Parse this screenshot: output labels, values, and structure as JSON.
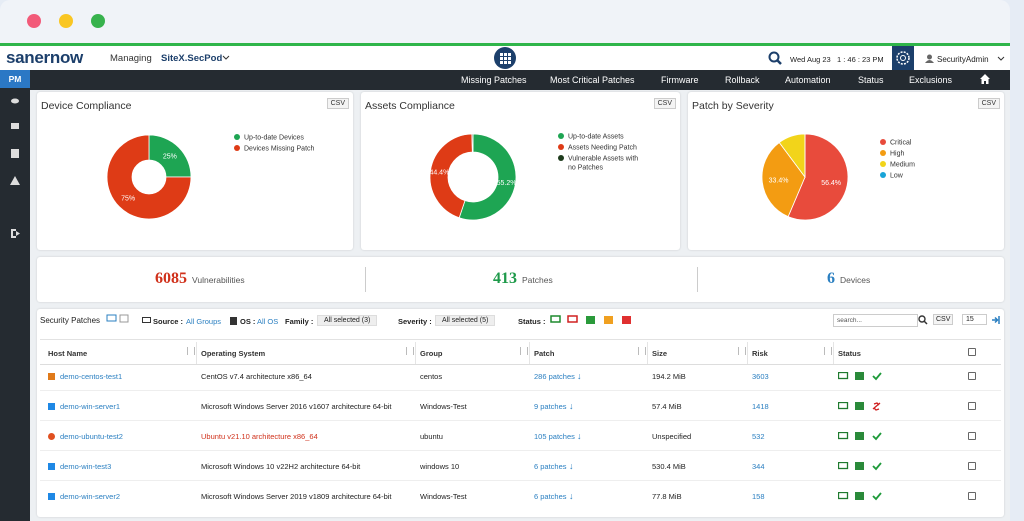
{
  "header": {
    "logo": "sanernow",
    "managing": "Managing",
    "site": "SiteX.SecPod",
    "datetime": "Wed Aug 23   1 : 46 : 23 PM",
    "user": "SecurityAdmin"
  },
  "sidebar": {
    "module": "PM"
  },
  "nav": [
    "Missing Patches",
    "Most Critical Patches",
    "Firmware",
    "Rollback",
    "Automation",
    "Status",
    "Exclusions"
  ],
  "csv_button": "CSV",
  "chart_data": [
    {
      "type": "pie",
      "donut": true,
      "title": "Device Compliance",
      "categories": [
        "Up-to-date Devices",
        "Devices Missing Patch"
      ],
      "values": [
        25,
        75
      ],
      "value_labels": [
        "25%",
        "75%"
      ],
      "colors": [
        "#1ea553",
        "#de3b16"
      ]
    },
    {
      "type": "pie",
      "donut": true,
      "title": "Assets Compliance",
      "categories": [
        "Up-to-date Assets",
        "Assets Needing Patch",
        "Vulnerable Assets with no Patches"
      ],
      "values": [
        55.2,
        44.4,
        0.4
      ],
      "value_labels": [
        "55.2%",
        "44.4%",
        null
      ],
      "colors": [
        "#1ea553",
        "#de3b16",
        "#1d3b1c"
      ]
    },
    {
      "type": "pie",
      "donut": false,
      "title": "Patch by Severity",
      "categories": [
        "Critical",
        "High",
        "Medium",
        "Low"
      ],
      "values": [
        56.4,
        33.4,
        10.2,
        0
      ],
      "value_labels": [
        "56.4%",
        "33.4%",
        null,
        null
      ],
      "colors": [
        "#e84b3c",
        "#f39c12",
        "#f2d41a",
        "#18a4d8"
      ]
    }
  ],
  "stats": [
    {
      "value": "6085",
      "label": "Vulnerabilities"
    },
    {
      "value": "413",
      "label": "Patches"
    },
    {
      "value": "6",
      "label": "Devices"
    }
  ],
  "filters": {
    "title": "Security Patches",
    "source_label": "Source :",
    "source_value": "All Groups",
    "os_label": "OS :",
    "os_value": "All OS",
    "family_label": "Family :",
    "family_value": "All selected (3)",
    "severity_label": "Severity :",
    "severity_value": "All selected (5)",
    "status_label": "Status :",
    "search_placeholder": "search...",
    "page_size": "15"
  },
  "table": {
    "headers": [
      "Host Name",
      "Operating System",
      "Group",
      "Patch",
      "Size",
      "Risk",
      "Status"
    ],
    "rows": [
      [
        "demo-centos-test1",
        "CentOS v7.4 architecture x86_64",
        "centos",
        "286 patches",
        "194.2 MiB",
        "3603"
      ],
      [
        "demo-win-server1",
        "Microsoft Windows Server 2016 v1607 architecture 64-bit",
        "Windows-Test",
        "9 patches",
        "57.4 MiB",
        "1418"
      ],
      [
        "demo-ubuntu-test2",
        "Ubuntu v21.10 architecture x86_64",
        "ubuntu",
        "105 patches",
        "Unspecified",
        "532"
      ],
      [
        "demo-win-test3",
        "Microsoft Windows 10 v22H2 architecture 64-bit",
        "windows 10",
        "6 patches",
        "530.4 MiB",
        "344"
      ],
      [
        "demo-win-server2",
        "Microsoft Windows Server 2019 v1809 architecture 64-bit",
        "Windows-Test",
        "6 patches",
        "77.8 MiB",
        "158"
      ]
    ]
  }
}
